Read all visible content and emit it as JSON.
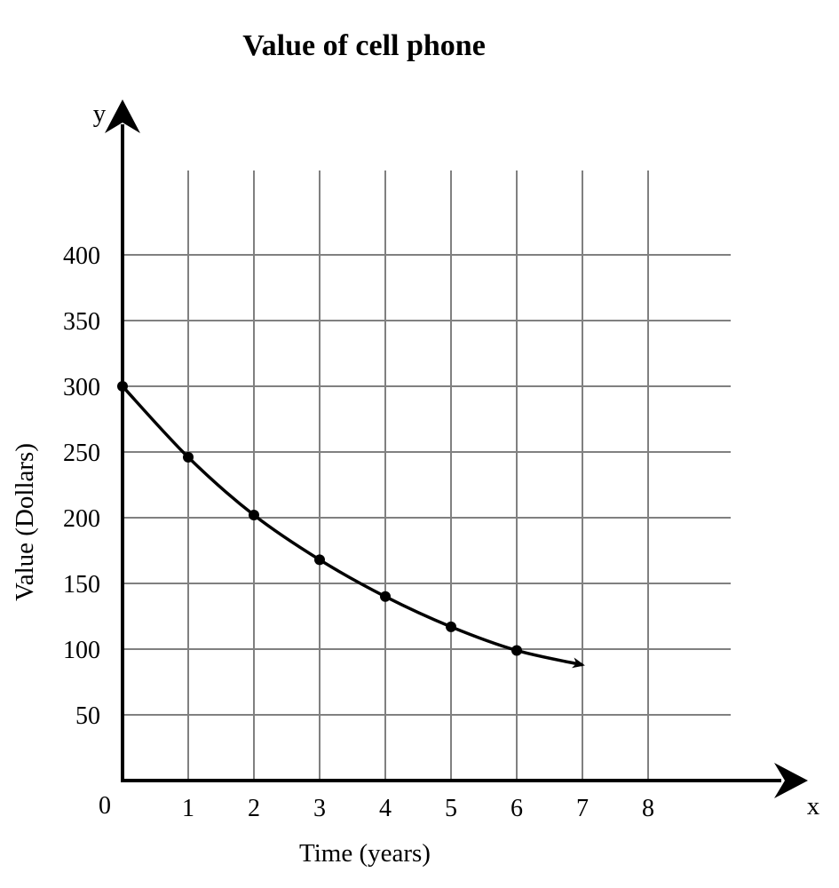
{
  "chart_data": {
    "type": "line",
    "title": "Value of cell phone",
    "xlabel": "Time (years)",
    "ylabel": "Value (Dollars)",
    "x_axis_letter": "x",
    "y_axis_letter": "y",
    "origin_label": "0",
    "x_ticks": [
      1,
      2,
      3,
      4,
      5,
      6,
      7,
      8
    ],
    "y_ticks": [
      50,
      100,
      150,
      200,
      250,
      300,
      350,
      400
    ],
    "xlim": [
      0,
      8
    ],
    "ylim": [
      0,
      400
    ],
    "grid": true,
    "series": [
      {
        "name": "Value of cell phone",
        "x": [
          0,
          1,
          2,
          3,
          4,
          5,
          6
        ],
        "values": [
          300,
          246,
          202,
          168,
          140,
          117,
          99
        ],
        "curve_end": [
          7,
          88
        ]
      }
    ]
  }
}
